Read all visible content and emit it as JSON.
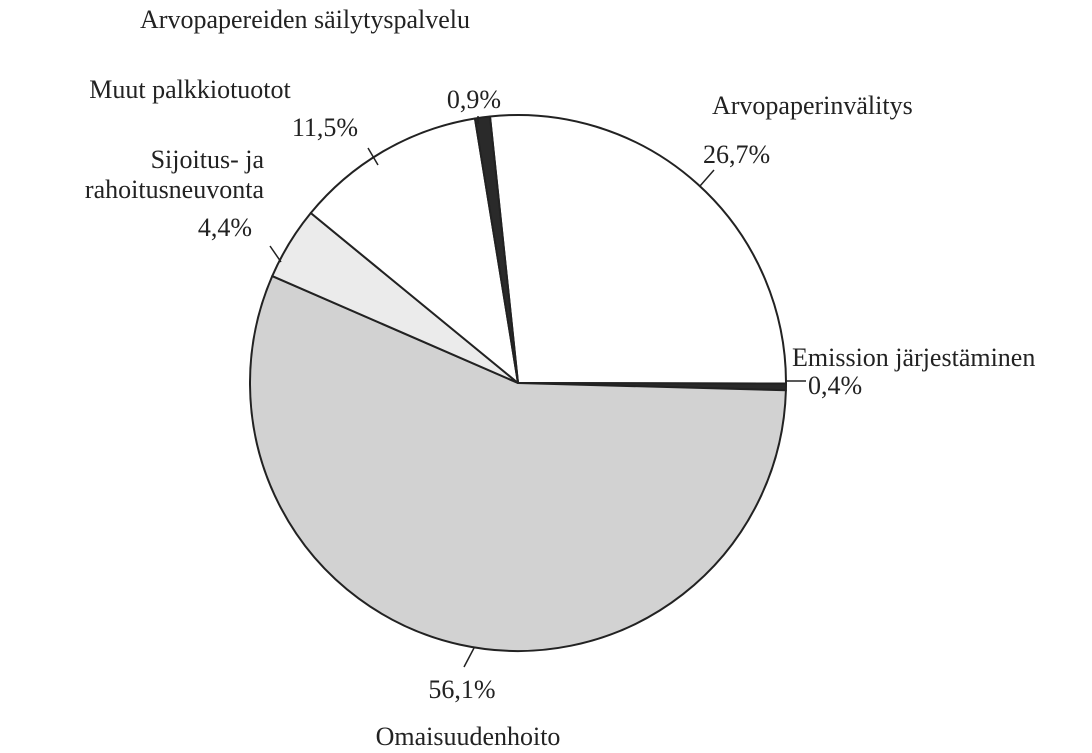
{
  "chart_data": {
    "type": "pie",
    "categories": [
      "Arvopaperinvälitys",
      "Emission järjestäminen",
      "Omaisuudenhoito",
      "Sijoitus- ja rahoitusneuvonta",
      "Muut palkkiotuotot",
      "Arvopapereiden säilytyspalvelu"
    ],
    "values": [
      26.7,
      0.4,
      56.1,
      4.4,
      11.5,
      0.9
    ],
    "value_labels": [
      "26,7%",
      "0,4%",
      "56,1%",
      "4,4%",
      "11,5%",
      "0,9%"
    ],
    "colors": [
      "#ffffff",
      "#2a2a2a",
      "#d2d2d2",
      "#ebebeb",
      "#ffffff",
      "#2a2a2a"
    ]
  }
}
